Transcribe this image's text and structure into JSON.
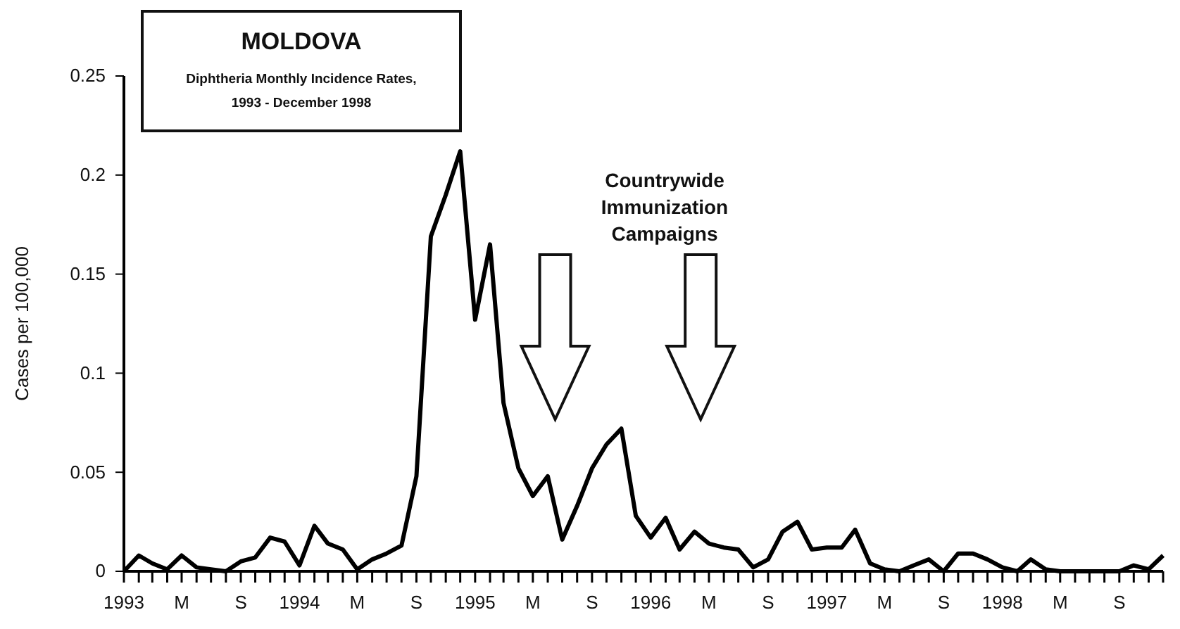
{
  "chart_data": {
    "type": "line",
    "title": "MOLDOVA",
    "subtitle": "Diphtheria Monthly Incidence Rates, 1993 - December 1998",
    "ylabel": "Cases per 100,000",
    "annotations": [
      "Countrywide Immunization Campaigns"
    ],
    "x": [
      "1993-01",
      "1993-02",
      "1993-03",
      "1993-04",
      "1993-05",
      "1993-06",
      "1993-07",
      "1993-08",
      "1993-09",
      "1993-10",
      "1993-11",
      "1993-12",
      "1994-01",
      "1994-02",
      "1994-03",
      "1994-04",
      "1994-05",
      "1994-06",
      "1994-07",
      "1994-08",
      "1994-09",
      "1994-10",
      "1994-11",
      "1994-12",
      "1995-01",
      "1995-02",
      "1995-03",
      "1995-04",
      "1995-05",
      "1995-06",
      "1995-07",
      "1995-08",
      "1995-09",
      "1995-10",
      "1995-11",
      "1995-12",
      "1996-01",
      "1996-02",
      "1996-03",
      "1996-04",
      "1996-05",
      "1996-06",
      "1996-07",
      "1996-08",
      "1996-09",
      "1996-10",
      "1996-11",
      "1996-12",
      "1997-01",
      "1997-02",
      "1997-03",
      "1997-04",
      "1997-05",
      "1997-06",
      "1997-07",
      "1997-08",
      "1997-09",
      "1997-10",
      "1997-11",
      "1997-12",
      "1998-01",
      "1998-02",
      "1998-03",
      "1998-04",
      "1998-05",
      "1998-06",
      "1998-07",
      "1998-08",
      "1998-09",
      "1998-10",
      "1998-11",
      "1998-12"
    ],
    "values": [
      0,
      0.008,
      0.004,
      0.001,
      0.008,
      0.002,
      0.001,
      0,
      0.005,
      0.007,
      0.017,
      0.015,
      0.003,
      0.023,
      0.014,
      0.011,
      0.001,
      0.006,
      0.009,
      0.013,
      0.048,
      0.169,
      0.19,
      0.212,
      0.127,
      0.165,
      0.085,
      0.052,
      0.038,
      0.048,
      0.016,
      0.033,
      0.052,
      0.064,
      0.072,
      0.028,
      0.017,
      0.027,
      0.011,
      0.02,
      0.014,
      0.012,
      0.011,
      0.002,
      0.006,
      0.02,
      0.025,
      0.011,
      0.012,
      0.012,
      0.021,
      0.004,
      0.001,
      0,
      0.003,
      0.006,
      0,
      0.009,
      0.009,
      0.006,
      0.002,
      0,
      0.006,
      0.001,
      0,
      0,
      0,
      0,
      0,
      0.003,
      0.001,
      0.008
    ],
    "color": "#000000",
    "marker": "none",
    "line_style": "solid",
    "grid": false,
    "xlim": [
      "1993-01",
      "1998-12"
    ],
    "xticks": [
      {
        "value": "1993-01",
        "label": "1993"
      },
      {
        "value": "1993-02",
        "label": null
      },
      {
        "value": "1993-03",
        "label": null
      },
      {
        "value": "1993-04",
        "label": null
      },
      {
        "value": "1993-05",
        "label": "M"
      },
      {
        "value": "1993-06",
        "label": null
      },
      {
        "value": "1993-07",
        "label": null
      },
      {
        "value": "1993-08",
        "label": null
      },
      {
        "value": "1993-09",
        "label": "S"
      },
      {
        "value": "1993-10",
        "label": null
      },
      {
        "value": "1993-11",
        "label": null
      },
      {
        "value": "1993-12",
        "label": null
      },
      {
        "value": "1994-01",
        "label": "1994"
      },
      {
        "value": "1994-02",
        "label": null
      },
      {
        "value": "1994-03",
        "label": null
      },
      {
        "value": "1994-04",
        "label": null
      },
      {
        "value": "1994-05",
        "label": "M"
      },
      {
        "value": "1994-06",
        "label": null
      },
      {
        "value": "1994-07",
        "label": null
      },
      {
        "value": "1994-08",
        "label": null
      },
      {
        "value": "1994-09",
        "label": "S"
      },
      {
        "value": "1994-10",
        "label": null
      },
      {
        "value": "1994-11",
        "label": null
      },
      {
        "value": "1994-12",
        "label": null
      },
      {
        "value": "1995-01",
        "label": "1995"
      },
      {
        "value": "1995-02",
        "label": null
      },
      {
        "value": "1995-03",
        "label": null
      },
      {
        "value": "1995-04",
        "label": null
      },
      {
        "value": "1995-05",
        "label": "M"
      },
      {
        "value": "1995-06",
        "label": null
      },
      {
        "value": "1995-07",
        "label": null
      },
      {
        "value": "1995-08",
        "label": null
      },
      {
        "value": "1995-09",
        "label": "S"
      },
      {
        "value": "1995-10",
        "label": null
      },
      {
        "value": "1995-11",
        "label": null
      },
      {
        "value": "1995-12",
        "label": null
      },
      {
        "value": "1996-01",
        "label": "1996"
      },
      {
        "value": "1996-02",
        "label": null
      },
      {
        "value": "1996-03",
        "label": null
      },
      {
        "value": "1996-04",
        "label": null
      },
      {
        "value": "1996-05",
        "label": "M"
      },
      {
        "value": "1996-06",
        "label": null
      },
      {
        "value": "1996-07",
        "label": null
      },
      {
        "value": "1996-08",
        "label": null
      },
      {
        "value": "1996-09",
        "label": "S"
      },
      {
        "value": "1996-10",
        "label": null
      },
      {
        "value": "1996-11",
        "label": null
      },
      {
        "value": "1996-12",
        "label": null
      },
      {
        "value": "1997-01",
        "label": "1997"
      },
      {
        "value": "1997-02",
        "label": null
      },
      {
        "value": "1997-03",
        "label": null
      },
      {
        "value": "1997-04",
        "label": null
      },
      {
        "value": "1997-05",
        "label": "M"
      },
      {
        "value": "1997-06",
        "label": null
      },
      {
        "value": "1997-07",
        "label": null
      },
      {
        "value": "1997-08",
        "label": null
      },
      {
        "value": "1997-09",
        "label": "S"
      },
      {
        "value": "1997-10",
        "label": null
      },
      {
        "value": "1997-11",
        "label": null
      },
      {
        "value": "1997-12",
        "label": null
      },
      {
        "value": "1998-01",
        "label": "1998"
      },
      {
        "value": "1998-02",
        "label": null
      },
      {
        "value": "1998-03",
        "label": null
      },
      {
        "value": "1998-04",
        "label": null
      },
      {
        "value": "1998-05",
        "label": "M"
      },
      {
        "value": "1998-06",
        "label": null
      },
      {
        "value": "1998-07",
        "label": null
      },
      {
        "value": "1998-08",
        "label": null
      },
      {
        "value": "1998-09",
        "label": "S"
      },
      {
        "value": "1998-10",
        "label": null
      },
      {
        "value": "1998-11",
        "label": null
      },
      {
        "value": "1998-12",
        "label": null
      }
    ],
    "ylim": [
      0,
      0.25
    ],
    "yticks": [
      0,
      0.05,
      0.1,
      0.15,
      0.2,
      0.25
    ]
  }
}
